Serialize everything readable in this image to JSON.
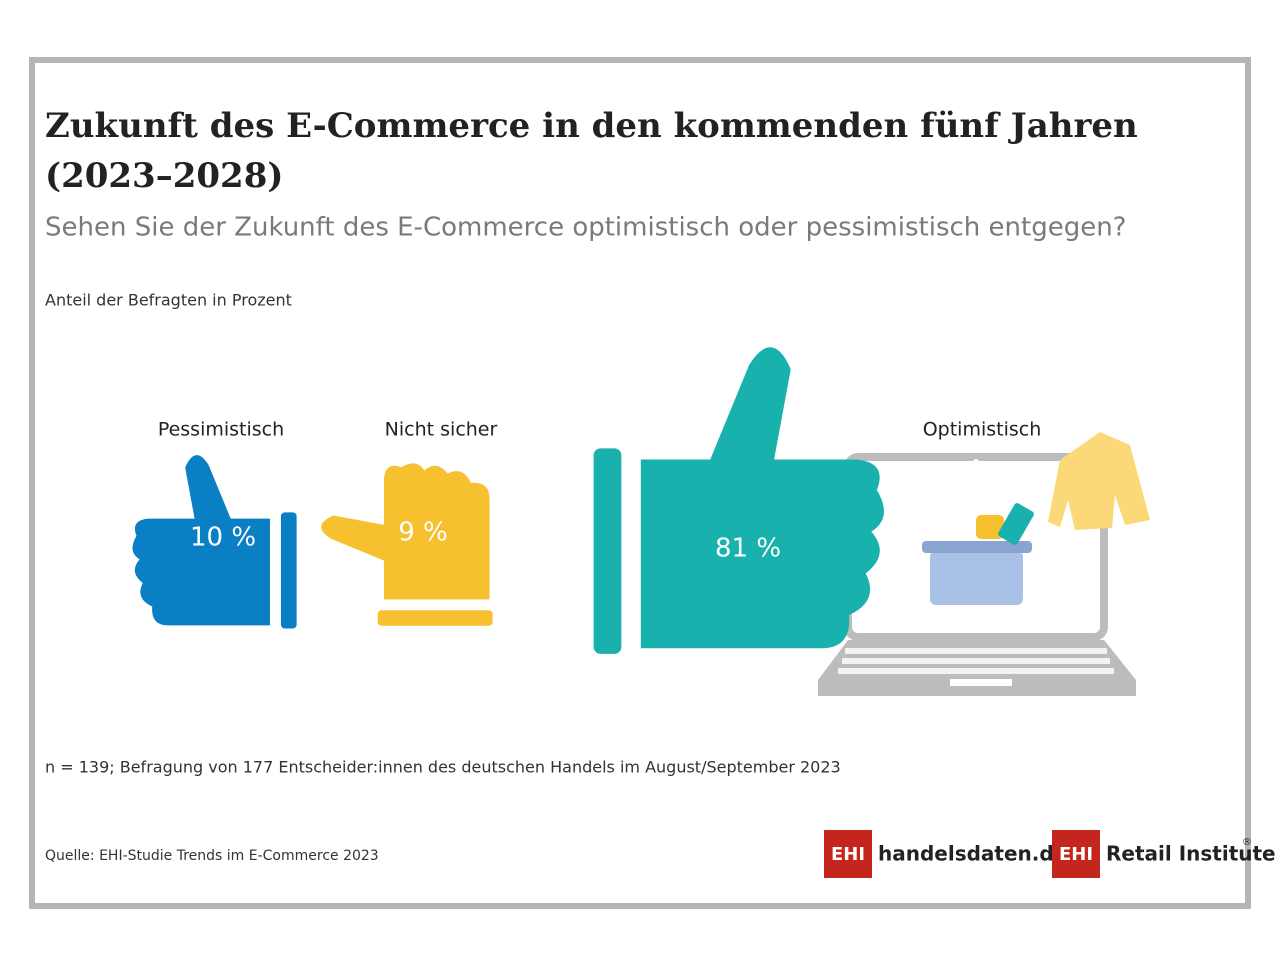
{
  "chart_data": {
    "type": "pictogram",
    "title": [
      "Zukunft des E-Commerce in den kommenden fünf Jahren",
      "(2023–2028)"
    ],
    "subtitle": "Sehen Sie der Zukunft des E-Commerce optimistisch oder pessimistisch entgegen?",
    "unit_label": "Anteil der Befragten in Prozent",
    "categories": [
      "Pessimistisch",
      "Nicht sicher",
      "Optimistisch"
    ],
    "values": [
      10,
      9,
      81
    ],
    "value_labels": [
      "10 %",
      "9 %",
      "81 %"
    ],
    "colors": [
      "#0b7fc3",
      "#f6c02e",
      "#19b1ad"
    ],
    "note": "n = 139; Befragung von 177 Entscheider:innen des deutschen Handels im August/September 2023",
    "source": "Quelle: EHI-Studie Trends im E-Commerce 2023"
  },
  "logos": [
    {
      "mark": "EHI",
      "text": "handelsdaten.de"
    },
    {
      "mark": "EHI",
      "text": "Retail Institute",
      "sup": "®"
    }
  ]
}
